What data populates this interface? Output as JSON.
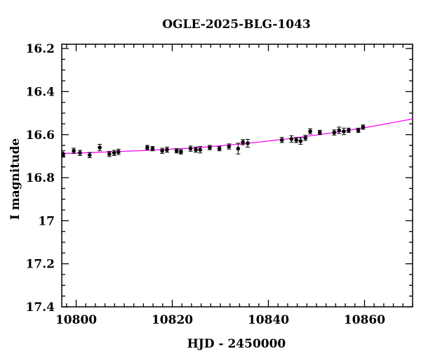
{
  "chart_data": {
    "type": "scatter",
    "title": "OGLE-2025-BLG-1043",
    "xlabel": "HJD - 2450000",
    "ylabel": "I magnitude",
    "xlim": [
      10797,
      10870
    ],
    "ylim": [
      17.4,
      16.18
    ],
    "y_inverted": true,
    "x_ticks": [
      10800,
      10820,
      10840,
      10860
    ],
    "x_tick_labels": [
      "10800",
      "10820",
      "10840",
      "10860"
    ],
    "y_ticks": [
      16.2,
      16.4,
      16.6,
      16.8,
      17,
      17.2,
      17.4
    ],
    "y_tick_labels": [
      "16.2",
      "16.4",
      "16.6",
      "16.8",
      "17",
      "17.2",
      "17.4"
    ],
    "grid": false,
    "series": [
      {
        "kind": "points",
        "marker": "filled-circle",
        "color": "#000000",
        "x": [
          10797.3,
          10799.5,
          10800.8,
          10802.8,
          10804.9,
          10806.9,
          10807.9,
          10808.8,
          10814.8,
          10815.9,
          10817.9,
          10818.9,
          10820.9,
          10821.8,
          10823.8,
          10824.9,
          10825.8,
          10827.8,
          10829.8,
          10831.8,
          10833.7,
          10834.7,
          10835.7,
          10842.8,
          10844.8,
          10845.8,
          10846.7,
          10847.7,
          10848.7,
          10850.7,
          10853.7,
          10854.7,
          10855.7,
          10856.7,
          10858.7,
          10859.7
        ],
        "y": [
          16.69,
          16.675,
          16.685,
          16.695,
          16.66,
          16.69,
          16.685,
          16.68,
          16.66,
          16.665,
          16.675,
          16.67,
          16.675,
          16.68,
          16.665,
          16.67,
          16.67,
          16.66,
          16.665,
          16.655,
          16.665,
          16.635,
          16.64,
          16.625,
          16.62,
          16.625,
          16.63,
          16.615,
          16.585,
          16.59,
          16.59,
          16.58,
          16.585,
          16.58,
          16.58,
          16.565
        ],
        "yerr": [
          0.015,
          0.012,
          0.012,
          0.012,
          0.015,
          0.012,
          0.012,
          0.012,
          0.01,
          0.01,
          0.012,
          0.012,
          0.01,
          0.01,
          0.012,
          0.012,
          0.015,
          0.01,
          0.01,
          0.012,
          0.025,
          0.012,
          0.018,
          0.012,
          0.015,
          0.012,
          0.015,
          0.012,
          0.012,
          0.01,
          0.012,
          0.015,
          0.015,
          0.01,
          0.01,
          0.01
        ]
      },
      {
        "kind": "model-curve",
        "color": "#ff00ff",
        "x": [
          10797,
          10805,
          10815,
          10825,
          10835,
          10845,
          10855,
          10862,
          10870
        ],
        "y": [
          16.688,
          16.682,
          16.673,
          16.661,
          16.642,
          16.617,
          16.586,
          16.56,
          16.527
        ]
      }
    ]
  }
}
